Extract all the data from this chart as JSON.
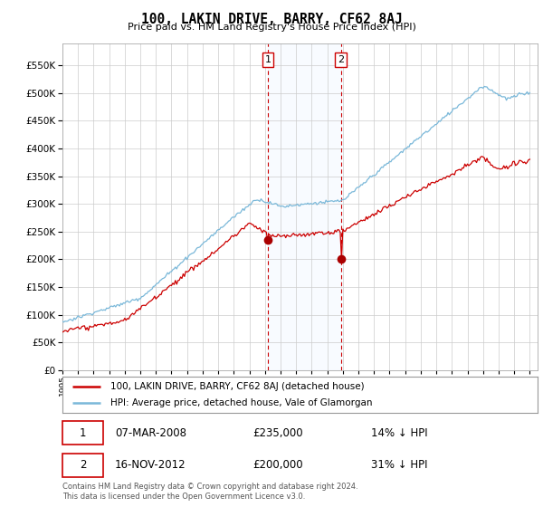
{
  "title": "100, LAKIN DRIVE, BARRY, CF62 8AJ",
  "subtitle": "Price paid vs. HM Land Registry's House Price Index (HPI)",
  "yticks": [
    0,
    50000,
    100000,
    150000,
    200000,
    250000,
    300000,
    350000,
    400000,
    450000,
    500000,
    550000
  ],
  "sale1_date": "07-MAR-2008",
  "sale1_price": 235000,
  "sale1_label": "14% ↓ HPI",
  "sale2_date": "16-NOV-2012",
  "sale2_price": 200000,
  "sale2_label": "31% ↓ HPI",
  "sale1_x": 2008.18,
  "sale2_x": 2012.88,
  "legend_line1": "100, LAKIN DRIVE, BARRY, CF62 8AJ (detached house)",
  "legend_line2": "HPI: Average price, detached house, Vale of Glamorgan",
  "footnote": "Contains HM Land Registry data © Crown copyright and database right 2024.\nThis data is licensed under the Open Government Licence v3.0.",
  "hpi_color": "#7ab8d9",
  "price_color": "#cc0000",
  "shading_color": "#ddeeff",
  "marker_color": "#aa0000",
  "grid_color": "#cccccc",
  "background_color": "#ffffff",
  "box_color": "#cc0000",
  "xstart": 1995,
  "xend": 2025
}
